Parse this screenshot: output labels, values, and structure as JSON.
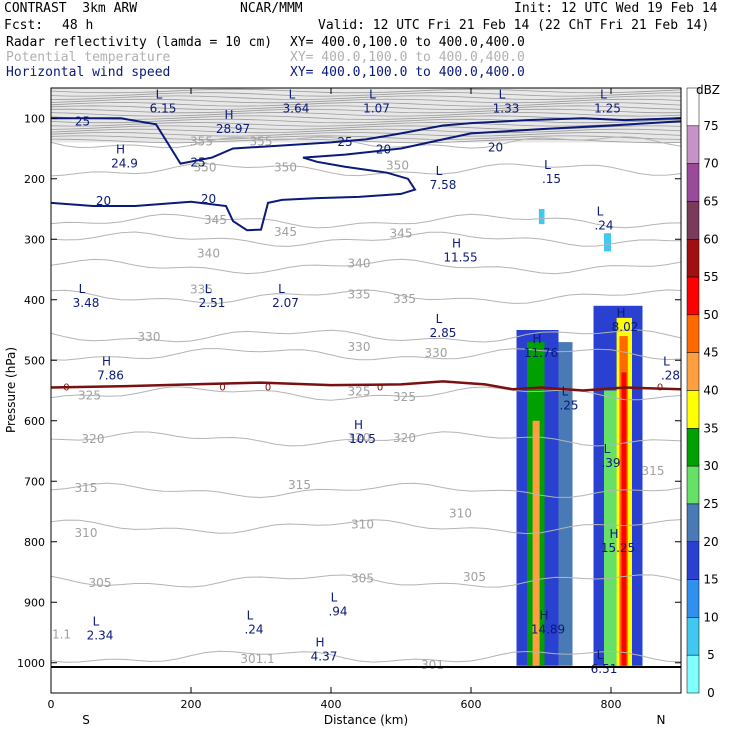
{
  "header": {
    "title_left": "CONTRAST  3km ARW",
    "title_center": "NCAR/MMM",
    "init": "Init: 12 UTC Wed 19 Feb 14",
    "fcst_label": "Fcst:",
    "fcst_value": "48 h",
    "valid": "Valid: 12 UTC Fri 21 Feb 14 (22 ChT Fri 21 Feb 14)",
    "fields": [
      {
        "name": "Radar reflectivity (lamda = 10 cm)",
        "xy": "XY= 400.0,100.0 to 400.0,400.0",
        "color": "#000000"
      },
      {
        "name": "Potential temperature",
        "xy": "XY= 400.0,100.0 to 400.0,400.0",
        "color": "#b0b0b0"
      },
      {
        "name": "Horizontal wind speed",
        "xy": "XY= 400.0,100.0 to 400.0,400.0",
        "color": "#0a1a7a"
      }
    ]
  },
  "chart_data": {
    "type": "heatmap",
    "title": "Cross-section: radar reflectivity, potential temperature, horizontal wind speed",
    "xlabel": "Distance (km)",
    "ylabel": "Pressure (hPa)",
    "xlim": [
      0,
      900
    ],
    "ylim": [
      1050,
      50
    ],
    "x_ticks": [
      0,
      200,
      400,
      600,
      800
    ],
    "y_ticks": [
      100,
      200,
      300,
      400,
      500,
      600,
      700,
      800,
      900,
      1000
    ],
    "x_endpoints": {
      "left": "S",
      "right": "N"
    },
    "colorbar": {
      "unit": "dBZ",
      "levels": [
        75,
        70,
        65,
        60,
        55,
        50,
        45,
        40,
        35,
        30,
        25,
        20,
        15,
        10,
        5,
        0
      ],
      "colors": [
        "#ffffff",
        "#c594c5",
        "#9b4a9b",
        "#7a3a5a",
        "#a01010",
        "#ff0000",
        "#ff6a00",
        "#ffa040",
        "#ffff00",
        "#00a000",
        "#66e066",
        "#4a7ab5",
        "#2a40d0",
        "#3090f0",
        "#40c8f0",
        "#80ffff"
      ]
    },
    "theta_labels": [
      {
        "v": "355",
        "x": 215,
        "p": 145
      },
      {
        "v": "355",
        "x": 300,
        "p": 145
      },
      {
        "v": "350",
        "x": 220,
        "p": 188
      },
      {
        "v": "350",
        "x": 335,
        "p": 188
      },
      {
        "v": "350",
        "x": 495,
        "p": 185
      },
      {
        "v": "345",
        "x": 235,
        "p": 275
      },
      {
        "v": "345",
        "x": 335,
        "p": 295
      },
      {
        "v": "345",
        "x": 500,
        "p": 297
      },
      {
        "v": "340",
        "x": 225,
        "p": 330
      },
      {
        "v": "340",
        "x": 440,
        "p": 347
      },
      {
        "v": "335",
        "x": 215,
        "p": 390
      },
      {
        "v": "335",
        "x": 440,
        "p": 398
      },
      {
        "v": "335",
        "x": 505,
        "p": 405
      },
      {
        "v": "330",
        "x": 140,
        "p": 468
      },
      {
        "v": "330",
        "x": 440,
        "p": 485
      },
      {
        "v": "330",
        "x": 550,
        "p": 495
      },
      {
        "v": "325",
        "x": 55,
        "p": 565
      },
      {
        "v": "325",
        "x": 440,
        "p": 558
      },
      {
        "v": "325",
        "x": 505,
        "p": 567
      },
      {
        "v": "320",
        "x": 60,
        "p": 637
      },
      {
        "v": "320",
        "x": 440,
        "p": 635
      },
      {
        "v": "320",
        "x": 505,
        "p": 635
      },
      {
        "v": "315",
        "x": 50,
        "p": 718
      },
      {
        "v": "315",
        "x": 355,
        "p": 713
      },
      {
        "v": "315",
        "x": 860,
        "p": 690
      },
      {
        "v": "310",
        "x": 50,
        "p": 792
      },
      {
        "v": "310",
        "x": 445,
        "p": 778
      },
      {
        "v": "310",
        "x": 585,
        "p": 760
      },
      {
        "v": "305",
        "x": 70,
        "p": 875
      },
      {
        "v": "305",
        "x": 445,
        "p": 867
      },
      {
        "v": "305",
        "x": 605,
        "p": 865
      },
      {
        "v": "301.1",
        "x": 295,
        "p": 1000
      },
      {
        "v": "301",
        "x": 545,
        "p": 1010
      },
      {
        "v": "1.1",
        "x": 15,
        "p": 960
      }
    ],
    "wind_labels": [
      {
        "v": "25",
        "x": 45,
        "p": 112
      },
      {
        "v": "25",
        "x": 210,
        "p": 180
      },
      {
        "v": "25",
        "x": 420,
        "p": 146
      },
      {
        "v": "20",
        "x": 475,
        "p": 158
      },
      {
        "v": "20",
        "x": 635,
        "p": 155
      },
      {
        "v": "20",
        "x": 75,
        "p": 243
      },
      {
        "v": "20",
        "x": 225,
        "p": 240
      }
    ],
    "extrema": [
      {
        "t": "L",
        "v": "6.15",
        "x": 160,
        "p": 84
      },
      {
        "t": "L",
        "v": "3.64",
        "x": 350,
        "p": 84
      },
      {
        "t": "L",
        "v": "1.07",
        "x": 465,
        "p": 84
      },
      {
        "t": "L",
        "v": "1.33",
        "x": 650,
        "p": 84
      },
      {
        "t": "L",
        "v": "1.25",
        "x": 795,
        "p": 84
      },
      {
        "t": "H",
        "v": "28.97",
        "x": 260,
        "p": 118
      },
      {
        "t": "H",
        "v": "24.9",
        "x": 105,
        "p": 175
      },
      {
        "t": "L",
        "v": "7.58",
        "x": 560,
        "p": 210
      },
      {
        "t": "L",
        "v": ".15",
        "x": 715,
        "p": 200
      },
      {
        "t": "L",
        "v": ".24",
        "x": 790,
        "p": 277
      },
      {
        "t": "H",
        "v": "11.55",
        "x": 585,
        "p": 330
      },
      {
        "t": "L",
        "v": "3.48",
        "x": 50,
        "p": 405
      },
      {
        "t": "L",
        "v": "2.51",
        "x": 230,
        "p": 405
      },
      {
        "t": "L",
        "v": "2.07",
        "x": 335,
        "p": 405
      },
      {
        "t": "L",
        "v": "2.85",
        "x": 560,
        "p": 455
      },
      {
        "t": "H",
        "v": "8.02",
        "x": 820,
        "p": 445
      },
      {
        "t": "H",
        "v": "11.76",
        "x": 700,
        "p": 488
      },
      {
        "t": "H",
        "v": "7.86",
        "x": 85,
        "p": 525
      },
      {
        "t": "L",
        "v": ".28",
        "x": 885,
        "p": 525
      },
      {
        "t": "L",
        "v": ".25",
        "x": 740,
        "p": 575
      },
      {
        "t": "H",
        "v": "10.5",
        "x": 445,
        "p": 630
      },
      {
        "t": "L",
        "v": ".39",
        "x": 800,
        "p": 670
      },
      {
        "t": "H",
        "v": "15.25",
        "x": 810,
        "p": 810
      },
      {
        "t": "L",
        "v": "2.34",
        "x": 70,
        "p": 955
      },
      {
        "t": "L",
        "v": ".24",
        "x": 290,
        "p": 945
      },
      {
        "t": "L",
        "v": ".94",
        "x": 410,
        "p": 915
      },
      {
        "t": "H",
        "v": "14.89",
        "x": 710,
        "p": 945
      },
      {
        "t": "H",
        "v": "4.37",
        "x": 390,
        "p": 990
      },
      {
        "t": "L",
        "v": "6.51",
        "x": 790,
        "p": 1010
      }
    ],
    "freezing_level": {
      "label": "0",
      "label_x": [
        22,
        245,
        310,
        470,
        870
      ],
      "points": [
        [
          0,
          545
        ],
        [
          100,
          543
        ],
        [
          200,
          540
        ],
        [
          300,
          537
        ],
        [
          400,
          541
        ],
        [
          500,
          540
        ],
        [
          560,
          535
        ],
        [
          620,
          540
        ],
        [
          660,
          548
        ],
        [
          700,
          545
        ],
        [
          760,
          550
        ],
        [
          820,
          545
        ],
        [
          900,
          548
        ]
      ]
    },
    "wind_contours": [
      {
        "label": "20",
        "points": [
          [
            0,
            240
          ],
          [
            60,
            245
          ],
          [
            120,
            245
          ],
          [
            200,
            238
          ],
          [
            250,
            245
          ],
          [
            260,
            270
          ],
          [
            280,
            285
          ],
          [
            300,
            284
          ],
          [
            310,
            240
          ],
          [
            330,
            235
          ],
          [
            380,
            232
          ],
          [
            440,
            230
          ],
          [
            500,
            225
          ],
          [
            520,
            218
          ],
          [
            510,
            200
          ],
          [
            480,
            190
          ],
          [
            420,
            180
          ],
          [
            380,
            172
          ],
          [
            360,
            165
          ],
          [
            420,
            160
          ],
          [
            500,
            150
          ],
          [
            560,
            135
          ],
          [
            600,
            125
          ],
          [
            700,
            118
          ],
          [
            800,
            112
          ],
          [
            900,
            105
          ]
        ]
      },
      {
        "label": "25",
        "points": [
          [
            0,
            100
          ],
          [
            100,
            100
          ],
          [
            150,
            110
          ],
          [
            185,
            175
          ],
          [
            230,
            165
          ],
          [
            260,
            150
          ],
          [
            330,
            145
          ],
          [
            400,
            140
          ],
          [
            450,
            135
          ],
          [
            500,
            125
          ],
          [
            560,
            112
          ],
          [
            600,
            108
          ],
          [
            680,
            103
          ],
          [
            760,
            100
          ],
          [
            820,
            103
          ],
          [
            900,
            100
          ]
        ]
      }
    ],
    "reflectivity_columns": [
      {
        "x0": 665,
        "x1": 725,
        "p0": 450,
        "p1": 1005,
        "level": 15
      },
      {
        "x0": 680,
        "x1": 705,
        "p0": 470,
        "p1": 1005,
        "level": 30
      },
      {
        "x0": 688,
        "x1": 698,
        "p0": 600,
        "p1": 1005,
        "level": 40
      },
      {
        "x0": 725,
        "x1": 745,
        "p0": 470,
        "p1": 1005,
        "level": 20
      },
      {
        "x0": 775,
        "x1": 845,
        "p0": 410,
        "p1": 1005,
        "level": 15
      },
      {
        "x0": 790,
        "x1": 812,
        "p0": 550,
        "p1": 1005,
        "level": 25
      },
      {
        "x0": 808,
        "x1": 830,
        "p0": 430,
        "p1": 1005,
        "level": 35
      },
      {
        "x0": 812,
        "x1": 824,
        "p0": 460,
        "p1": 1005,
        "level": 45
      },
      {
        "x0": 815,
        "x1": 822,
        "p0": 520,
        "p1": 1005,
        "level": 50
      },
      {
        "x0": 697,
        "x1": 705,
        "p0": 250,
        "p1": 275,
        "level": 5
      },
      {
        "x0": 790,
        "x1": 800,
        "p0": 290,
        "p1": 320,
        "level": 5
      }
    ],
    "legend": "colorbar right (dBZ)"
  }
}
